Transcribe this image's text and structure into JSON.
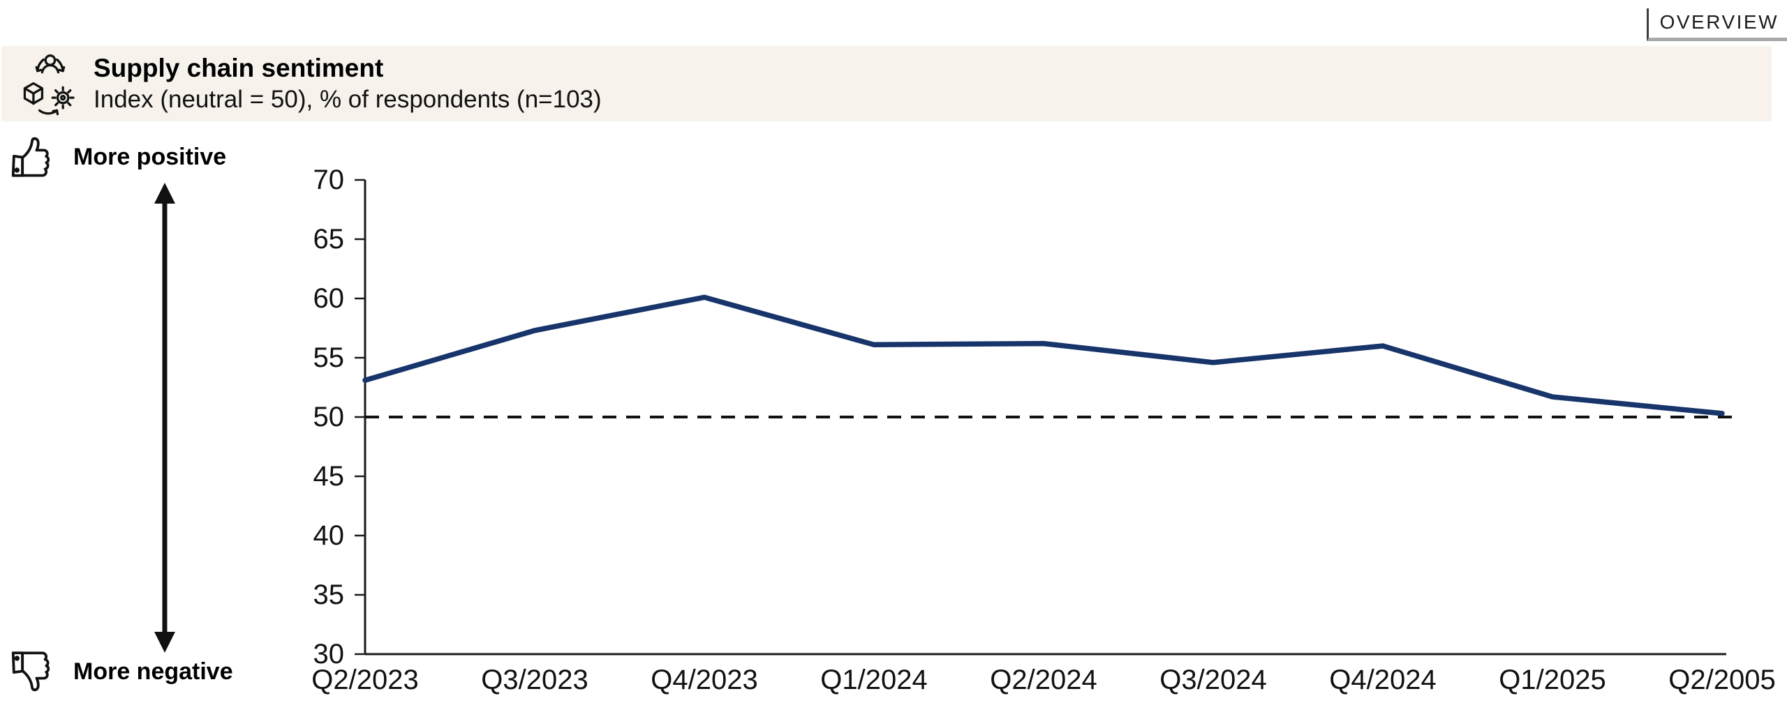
{
  "overview_tab": {
    "label": "OVERVIEW"
  },
  "header": {
    "title": "Supply chain sentiment",
    "subtitle": "Index (neutral = 50), % of respondents (n=103)",
    "icon": "supply-chain-icon",
    "background_color": "#f7f2ec"
  },
  "scale_annotations": {
    "top": {
      "icon": "thumbs-up-icon",
      "label": "More positive"
    },
    "bottom": {
      "icon": "thumbs-down-icon",
      "label": "More negative"
    }
  },
  "chart_data": {
    "type": "line",
    "title": "Supply chain sentiment",
    "categories": [
      "Q2/2023",
      "Q3/2023",
      "Q4/2023",
      "Q1/2024",
      "Q2/2024",
      "Q3/2024",
      "Q4/2024",
      "Q1/2025",
      "Q2/2005"
    ],
    "series": [
      {
        "name": "Supply chain sentiment index",
        "values": [
          53.1,
          57.3,
          60.1,
          56.1,
          56.2,
          54.6,
          56.0,
          51.7,
          50.3
        ]
      }
    ],
    "ylim": [
      30,
      70
    ],
    "yticks": [
      30,
      35,
      40,
      45,
      50,
      55,
      60,
      65,
      70
    ],
    "neutral_line": 50,
    "line_color": "#17356b",
    "axis_color": "#1a1a1a",
    "grid": false,
    "legend": false
  }
}
